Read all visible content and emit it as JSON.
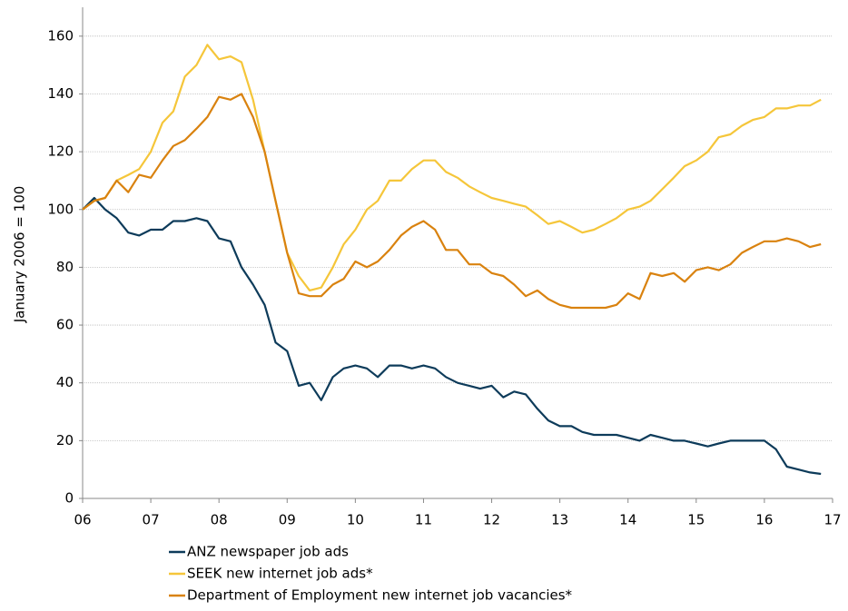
{
  "chart_data": {
    "type": "line",
    "ylabel": "January 2006 = 100",
    "x": [
      2006,
      2006.17,
      2006.33,
      2006.5,
      2006.67,
      2006.83,
      2007,
      2007.17,
      2007.33,
      2007.5,
      2007.67,
      2007.83,
      2008,
      2008.17,
      2008.33,
      2008.5,
      2008.67,
      2008.83,
      2009,
      2009.17,
      2009.33,
      2009.5,
      2009.67,
      2009.83,
      2010,
      2010.17,
      2010.33,
      2010.5,
      2010.67,
      2010.83,
      2011,
      2011.17,
      2011.33,
      2011.5,
      2011.67,
      2011.83,
      2012,
      2012.17,
      2012.33,
      2012.5,
      2012.67,
      2012.83,
      2013,
      2013.17,
      2013.33,
      2013.5,
      2013.67,
      2013.83,
      2014,
      2014.17,
      2014.33,
      2014.5,
      2014.67,
      2014.83,
      2015,
      2015.17,
      2015.33,
      2015.5,
      2015.67,
      2015.83,
      2016,
      2016.17,
      2016.33,
      2016.5,
      2016.67,
      2016.83
    ],
    "series": [
      {
        "name": "ANZ newspaper job ads",
        "color": "#0d3b5a",
        "values": [
          100,
          104,
          100,
          97,
          92,
          91,
          93,
          93,
          96,
          96,
          97,
          96,
          90,
          89,
          80,
          74,
          67,
          54,
          51,
          39,
          40,
          34,
          42,
          45,
          46,
          45,
          42,
          46,
          46,
          45,
          46,
          45,
          42,
          40,
          39,
          38,
          39,
          35,
          37,
          36,
          31,
          27,
          25,
          25,
          23,
          22,
          22,
          22,
          21,
          20,
          22,
          21,
          20,
          20,
          19,
          18,
          19,
          20,
          20,
          20,
          20,
          17,
          11,
          10,
          9,
          8.5
        ]
      },
      {
        "name": "SEEK new internet job ads*",
        "color": "#f5c63a",
        "values": [
          100,
          103,
          104,
          110,
          112,
          114,
          120,
          130,
          134,
          146,
          150,
          157,
          152,
          153,
          151,
          138,
          120,
          103,
          85,
          77,
          72,
          73,
          80,
          88,
          93,
          100,
          103,
          110,
          110,
          114,
          117,
          117,
          113,
          111,
          108,
          106,
          104,
          103,
          102,
          101,
          98,
          95,
          96,
          94,
          92,
          93,
          95,
          97,
          100,
          101,
          103,
          107,
          111,
          115,
          117,
          120,
          125,
          126,
          129,
          131,
          132,
          135,
          135,
          136,
          136,
          138
        ]
      },
      {
        "name": "Department of Employment new internet job vacancies*",
        "color": "#d9820f",
        "values": [
          100,
          103,
          104,
          110,
          106,
          112,
          111,
          117,
          122,
          124,
          128,
          132,
          139,
          138,
          140,
          132,
          120,
          103,
          85,
          71,
          70,
          70,
          74,
          76,
          82,
          80,
          82,
          86,
          91,
          94,
          96,
          93,
          86,
          86,
          81,
          81,
          78,
          77,
          74,
          70,
          72,
          69,
          67,
          66,
          66,
          66,
          66,
          67,
          71,
          69,
          78,
          77,
          78,
          75,
          79,
          80,
          79,
          81,
          85,
          87,
          89,
          89,
          90,
          89,
          87,
          88
        ]
      }
    ],
    "xlim": [
      2006,
      2017
    ],
    "xticks": [
      {
        "value": 2006,
        "label": "06"
      },
      {
        "value": 2007,
        "label": "07"
      },
      {
        "value": 2008,
        "label": "08"
      },
      {
        "value": 2009,
        "label": "09"
      },
      {
        "value": 2010,
        "label": "10"
      },
      {
        "value": 2011,
        "label": "11"
      },
      {
        "value": 2012,
        "label": "12"
      },
      {
        "value": 2013,
        "label": "13"
      },
      {
        "value": 2014,
        "label": "14"
      },
      {
        "value": 2015,
        "label": "15"
      },
      {
        "value": 2016,
        "label": "16"
      },
      {
        "value": 2017,
        "label": "17"
      }
    ],
    "ylim": [
      0,
      170
    ],
    "yticks": [
      0,
      20,
      40,
      60,
      80,
      100,
      120,
      140,
      160
    ],
    "grid": true
  }
}
